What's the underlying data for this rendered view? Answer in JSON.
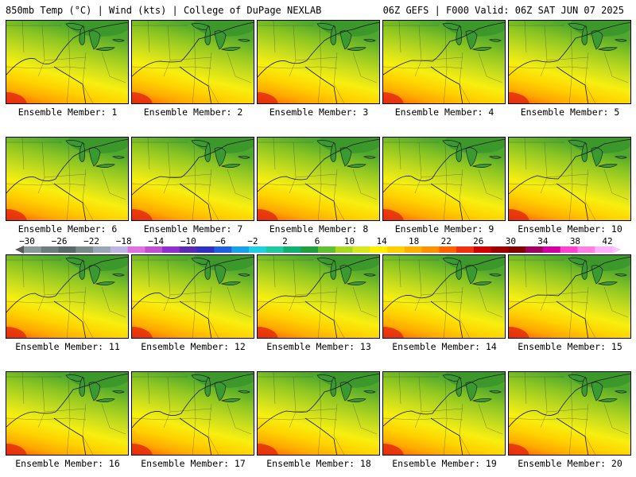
{
  "header": {
    "left": "850mb Temp (°C) | Wind (kts) | College of DuPage NEXLAB",
    "right": "06Z GEFS | F000 Valid: 06Z SAT JUN 07 2025"
  },
  "panels": [
    "Ensemble Member: 1",
    "Ensemble Member: 2",
    "Ensemble Member: 3",
    "Ensemble Member: 4",
    "Ensemble Member: 5",
    "Ensemble Member: 6",
    "Ensemble Member: 7",
    "Ensemble Member: 8",
    "Ensemble Member: 9",
    "Ensemble Member: 10",
    "Ensemble Member: 11",
    "Ensemble Member: 12",
    "Ensemble Member: 13",
    "Ensemble Member: 14",
    "Ensemble Member: 15",
    "Ensemble Member: 16",
    "Ensemble Member: 17",
    "Ensemble Member: 18",
    "Ensemble Member: 19",
    "Ensemble Member: 20"
  ],
  "colorbar": {
    "ticks": [
      "−30",
      "−26",
      "−22",
      "−18",
      "−14",
      "−10",
      "−6",
      "−2",
      "2",
      "6",
      "10",
      "14",
      "18",
      "22",
      "26",
      "30",
      "34",
      "38",
      "42"
    ],
    "colors": [
      "#8a9a9a",
      "#6e7e7e",
      "#5a6a6a",
      "#7a8a8a",
      "#9aa6b6",
      "#c0b6e6",
      "#e070e0",
      "#c050d0",
      "#9030d0",
      "#5a2ab0",
      "#3030c0",
      "#2060e0",
      "#1aa0e8",
      "#20d0e0",
      "#20c8a0",
      "#10b070",
      "#20a040",
      "#60c030",
      "#a8d820",
      "#d8e820",
      "#fff000",
      "#ffd000",
      "#ffb000",
      "#ff9000",
      "#ff6000",
      "#f03010",
      "#d00000",
      "#a00000",
      "#800000",
      "#a00060",
      "#d000a0",
      "#ff40d0",
      "#ff80e0",
      "#ffb0ff"
    ]
  }
}
